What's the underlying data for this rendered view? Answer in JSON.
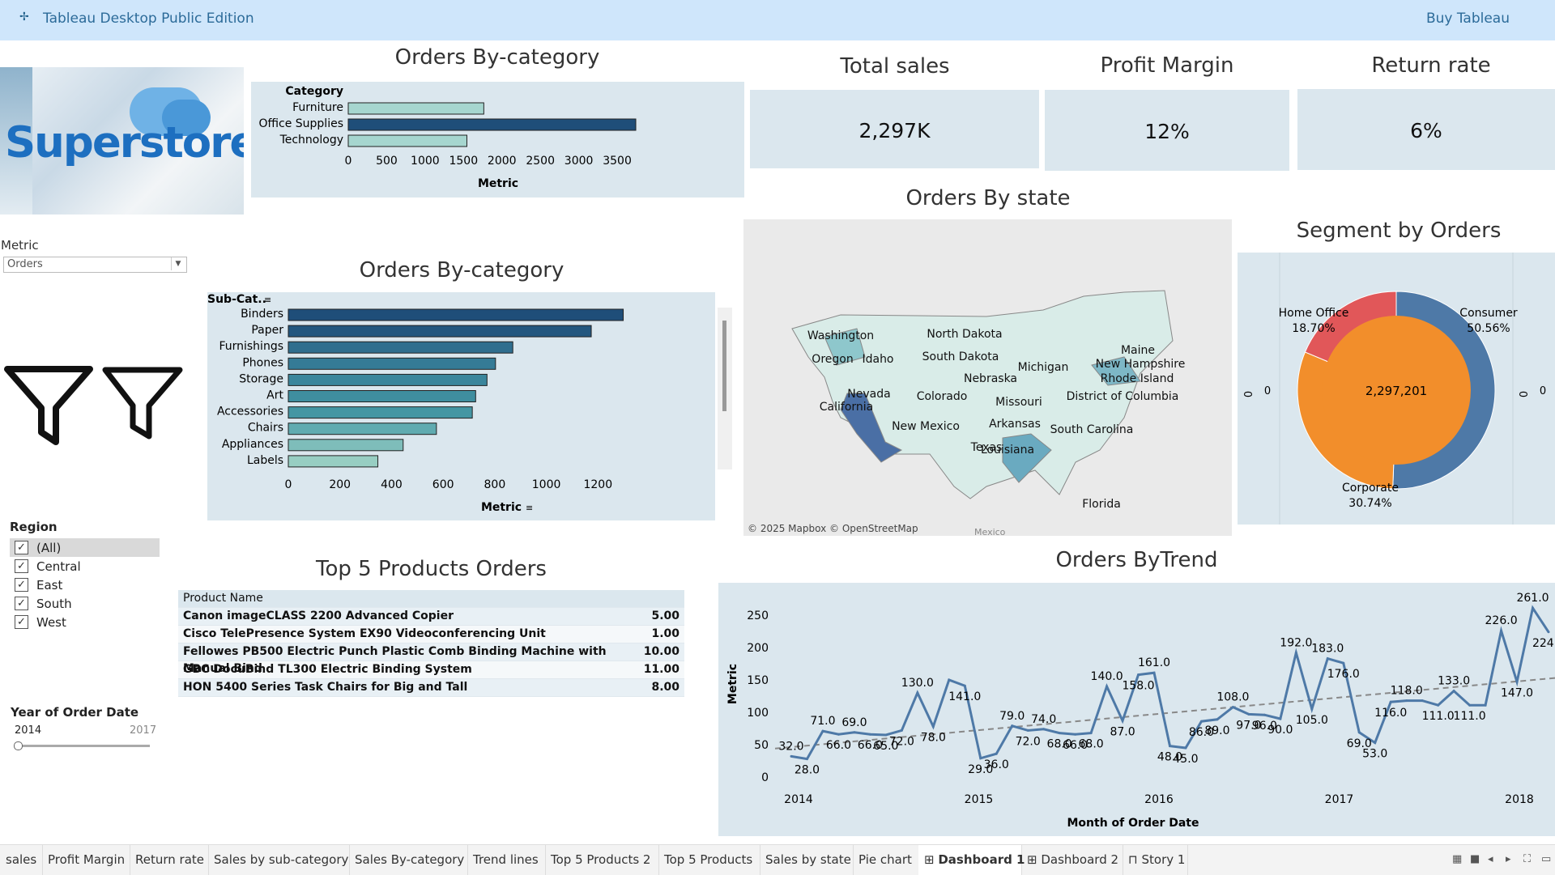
{
  "app": {
    "title": "Tableau Desktop Public Edition",
    "buy": "Buy Tableau"
  },
  "brand": {
    "logo_text": "Superstore"
  },
  "titles": {
    "orders_cat": "Orders By-category",
    "orders_subcat": "Orders By-category",
    "total_sales": "Total sales",
    "profit_margin": "Profit Margin",
    "return_rate": "Return rate",
    "orders_state": "Orders By state",
    "segment": "Segment by Orders",
    "top5": "Top 5 Products Orders",
    "trend": "Orders ByTrend"
  },
  "kpis": {
    "total_sales": "2,297K",
    "profit_margin": "12%",
    "return_rate": "6%"
  },
  "filters": {
    "metric_label": "Metric",
    "metric_value": "Orders",
    "region_label": "Region",
    "regions": [
      "(All)",
      "Central",
      "East",
      "South",
      "West"
    ],
    "year_label": "Year of Order Date",
    "year_min": "2014",
    "year_max": "2017"
  },
  "chart_data": [
    {
      "type": "bar",
      "title": "Orders By-category",
      "header": "Category",
      "xlabel": "Metric",
      "categories": [
        "Furniture",
        "Office Supplies",
        "Technology"
      ],
      "values": [
        1764,
        3742,
        1544
      ],
      "xticks": [
        0,
        500,
        1000,
        1500,
        2000,
        2500,
        3000,
        3500
      ],
      "xlim": [
        0,
        3900
      ]
    },
    {
      "type": "bar",
      "title": "Orders By-category",
      "header": "Sub-Cat..",
      "xlabel": "Metric",
      "categories": [
        "Binders",
        "Paper",
        "Furnishings",
        "Phones",
        "Storage",
        "Art",
        "Accessories",
        "Chairs",
        "Appliances",
        "Labels"
      ],
      "values": [
        1298,
        1174,
        870,
        803,
        770,
        726,
        713,
        574,
        445,
        347
      ],
      "xticks": [
        0,
        200,
        400,
        600,
        800,
        1000,
        1200
      ],
      "xlim": [
        0,
        1380
      ]
    },
    {
      "type": "pie",
      "title": "Segment by Orders",
      "center_label": "2,297,201",
      "slices": [
        {
          "name": "Consumer",
          "pct": "50.56%",
          "value": 50.56,
          "color": "#4e79a7"
        },
        {
          "name": "Corporate",
          "pct": "30.74%",
          "value": 30.74,
          "color": "#f28e2b"
        },
        {
          "name": "Home Office",
          "pct": "18.70%",
          "value": 18.7,
          "color": "#e15759"
        }
      ],
      "side_labels": [
        "0",
        "0",
        "0",
        "0"
      ]
    },
    {
      "type": "line",
      "title": "Orders ByTrend",
      "xlabel": "Month of Order Date",
      "ylabel": "Metric",
      "ylim": [
        0,
        270
      ],
      "yticks": [
        0,
        50,
        100,
        150,
        200,
        250
      ],
      "xticks": [
        "2014",
        "2015",
        "2016",
        "2017",
        "2018"
      ],
      "trendline": [
        44,
        153
      ],
      "values": [
        32,
        28,
        71,
        66,
        69,
        66,
        65,
        72,
        130,
        78,
        150,
        141,
        29,
        36,
        79,
        72,
        74,
        68,
        66,
        68,
        140,
        87,
        158,
        161,
        48,
        45,
        86,
        89,
        108,
        97,
        96,
        90,
        192,
        105,
        183,
        176,
        69,
        53,
        116,
        118,
        118,
        111,
        133,
        111,
        111,
        226,
        147,
        261,
        224
      ],
      "labels": [
        "32.0",
        "28.0",
        "71.0",
        "66.0",
        "69.0",
        "66.0",
        "65.0",
        "72.0",
        "130.0",
        "78.0",
        "",
        "141.0",
        "29.0",
        "36.0",
        "79.0",
        "72.0",
        "74.0",
        "68.0",
        "66.0",
        "68.0",
        "140.0",
        "87.0",
        "158.0",
        "161.0",
        "48.0",
        "45.0",
        "86.0",
        "89.0",
        "108.0",
        "97.0",
        "96.0",
        "90.0",
        "192.0",
        "105.0",
        "183.0",
        "176.0",
        "69.0",
        "53.0",
        "116.0",
        "118.0",
        "",
        "111.0",
        "133.0",
        "111.0",
        "",
        "226.0",
        "147.0",
        "261.0",
        "224.0"
      ]
    }
  ],
  "map": {
    "states": [
      "Washington",
      "Oregon",
      "Idaho",
      "North Dakota",
      "South Dakota",
      "Nebraska",
      "Nevada",
      "California",
      "Colorado",
      "Missouri",
      "Michigan",
      "Maine",
      "New Hampshire",
      "Rhode Island",
      "District of Columbia",
      "Arkansas",
      "South Carolina",
      "New Mexico",
      "Texas",
      "Louisiana",
      "Florida"
    ],
    "attribution": "© 2025 Mapbox © OpenStreetMap",
    "mexico": "Mexico"
  },
  "top5": {
    "header": "Product Name",
    "rows": [
      {
        "name": "Canon imageCLASS 2200 Advanced Copier",
        "value": "5.00"
      },
      {
        "name": "Cisco TelePresence System EX90 Videoconferencing Unit",
        "value": "1.00"
      },
      {
        "name": "Fellowes PB500 Electric Punch Plastic Comb Binding Machine with Manual Bind",
        "value": "10.00"
      },
      {
        "name": "GBC DocuBind TL300 Electric Binding System",
        "value": "11.00"
      },
      {
        "name": "HON 5400 Series Task Chairs for Big and Tall",
        "value": "8.00"
      }
    ]
  },
  "tabs": [
    "sales",
    "Profit Margin",
    "Return rate",
    "Sales by sub-category",
    "Sales By-category",
    "Trend lines",
    "Top 5 Products 2",
    "Top 5 Products",
    "Sales by state",
    "Pie chart",
    "Dashboard 1",
    "Dashboard 2",
    "Story 1"
  ],
  "active_tab": "Dashboard 1",
  "colors": {
    "panel": "#dbe7ee",
    "bar_dark": "#1f4e79",
    "bar_light": "#a6d6cf",
    "line": "#4e79a7",
    "accent": "#2c6b99"
  }
}
